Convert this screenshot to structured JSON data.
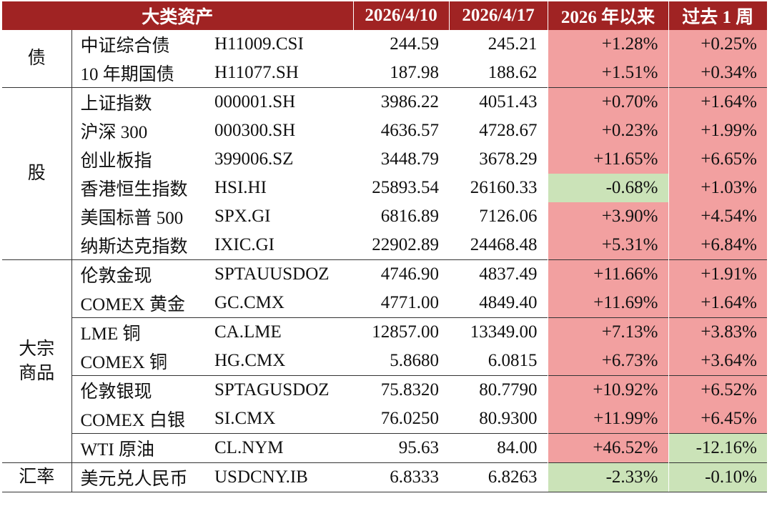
{
  "header": {
    "asset_class": "大类资产",
    "date1": "2026/4/10",
    "date2": "2026/4/17",
    "ytd": "2026 年以来",
    "week": "过去 1 周"
  },
  "colors": {
    "header_bg": "#a02323",
    "positive_bg": "#f2a0a0",
    "negative_bg": "#cbe3b8"
  },
  "groups": {
    "bond": "债",
    "equity": "股",
    "commodity_line1": "大宗",
    "commodity_line2": "商品",
    "fx": "汇率"
  },
  "rows": [
    {
      "name": "中证综合债",
      "code": "H11009.CSI",
      "v1": "244.59",
      "v2": "245.21",
      "ytd": "+1.28%",
      "ytd_sign": "pos",
      "wk": "+0.25%",
      "wk_sign": "pos"
    },
    {
      "name": "10 年期国债",
      "code": "H11077.SH",
      "v1": "187.98",
      "v2": "188.62",
      "ytd": "+1.51%",
      "ytd_sign": "pos",
      "wk": "+0.34%",
      "wk_sign": "pos"
    },
    {
      "name": "上证指数",
      "code": "000001.SH",
      "v1": "3986.22",
      "v2": "4051.43",
      "ytd": "+0.70%",
      "ytd_sign": "pos",
      "wk": "+1.64%",
      "wk_sign": "pos"
    },
    {
      "name": "沪深 300",
      "code": "000300.SH",
      "v1": "4636.57",
      "v2": "4728.67",
      "ytd": "+0.23%",
      "ytd_sign": "pos",
      "wk": "+1.99%",
      "wk_sign": "pos"
    },
    {
      "name": "创业板指",
      "code": "399006.SZ",
      "v1": "3448.79",
      "v2": "3678.29",
      "ytd": "+11.65%",
      "ytd_sign": "pos",
      "wk": "+6.65%",
      "wk_sign": "pos"
    },
    {
      "name": "香港恒生指数",
      "code": "HSI.HI",
      "v1": "25893.54",
      "v2": "26160.33",
      "ytd": "-0.68%",
      "ytd_sign": "neg",
      "wk": "+1.03%",
      "wk_sign": "pos"
    },
    {
      "name": "美国标普 500",
      "code": "SPX.GI",
      "v1": "6816.89",
      "v2": "7126.06",
      "ytd": "+3.90%",
      "ytd_sign": "pos",
      "wk": "+4.54%",
      "wk_sign": "pos"
    },
    {
      "name": "纳斯达克指数",
      "code": "IXIC.GI",
      "v1": "22902.89",
      "v2": "24468.48",
      "ytd": "+5.31%",
      "ytd_sign": "pos",
      "wk": "+6.84%",
      "wk_sign": "pos"
    },
    {
      "name": "伦敦金现",
      "code": "SPTAUUSDOZ",
      "v1": "4746.90",
      "v2": "4837.49",
      "ytd": "+11.66%",
      "ytd_sign": "pos",
      "wk": "+1.91%",
      "wk_sign": "pos"
    },
    {
      "name": "COMEX 黄金",
      "code": "GC.CMX",
      "v1": "4771.00",
      "v2": "4849.40",
      "ytd": "+11.69%",
      "ytd_sign": "pos",
      "wk": "+1.64%",
      "wk_sign": "pos"
    },
    {
      "name": "LME 铜",
      "code": "CA.LME",
      "v1": "12857.00",
      "v2": "13349.00",
      "ytd": "+7.13%",
      "ytd_sign": "pos",
      "wk": "+3.83%",
      "wk_sign": "pos"
    },
    {
      "name": "COMEX 铜",
      "code": "HG.CMX",
      "v1": "5.8680",
      "v2": "6.0815",
      "ytd": "+6.73%",
      "ytd_sign": "pos",
      "wk": "+3.64%",
      "wk_sign": "pos"
    },
    {
      "name": "伦敦银现",
      "code": "SPTAGUSDOZ",
      "v1": "75.8320",
      "v2": "80.7790",
      "ytd": "+10.92%",
      "ytd_sign": "pos",
      "wk": "+6.52%",
      "wk_sign": "pos"
    },
    {
      "name": "COMEX 白银",
      "code": "SI.CMX",
      "v1": "76.0250",
      "v2": "80.9300",
      "ytd": "+11.99%",
      "ytd_sign": "pos",
      "wk": "+6.45%",
      "wk_sign": "pos"
    },
    {
      "name": "WTI 原油",
      "code": "CL.NYM",
      "v1": "95.63",
      "v2": "84.00",
      "ytd": "+46.52%",
      "ytd_sign": "pos",
      "wk": "-12.16%",
      "wk_sign": "neg"
    },
    {
      "name": "美元兑人民币",
      "code": "USDCNY.IB",
      "v1": "6.8333",
      "v2": "6.8263",
      "ytd": "-2.33%",
      "ytd_sign": "neg",
      "wk": "-0.10%",
      "wk_sign": "neg"
    }
  ]
}
